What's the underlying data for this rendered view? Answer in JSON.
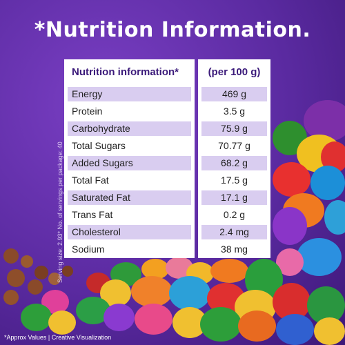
{
  "title": "*Nutrition Information.",
  "side_note": "Serving size: 2.93* No. of servings per package: 40",
  "table": {
    "header_left": "Nutrition information*",
    "header_right": "(per 100 g)",
    "rows": [
      {
        "name": "Energy",
        "value": "469 g"
      },
      {
        "name": "Protein",
        "value": "3.5 g"
      },
      {
        "name": "Carbohydrate",
        "value": "75.9 g"
      },
      {
        "name": "Total Sugars",
        "value": "70.77 g"
      },
      {
        "name": "Added Sugars",
        "value": "68.2 g"
      },
      {
        "name": "Total Fat",
        "value": "17.5 g"
      },
      {
        "name": "Saturated Fat",
        "value": "17.1 g"
      },
      {
        "name": "Trans Fat",
        "value": "0.2 g"
      },
      {
        "name": "Cholesterol",
        "value": "2.4 mg"
      },
      {
        "name": "Sodium",
        "value": "38 mg"
      }
    ]
  },
  "footer": "*Approx Values | Creative Visualization",
  "colors": {
    "background": "#5a2aa0",
    "shade": "#d9cdf0",
    "header_text": "#3b1a7a"
  }
}
